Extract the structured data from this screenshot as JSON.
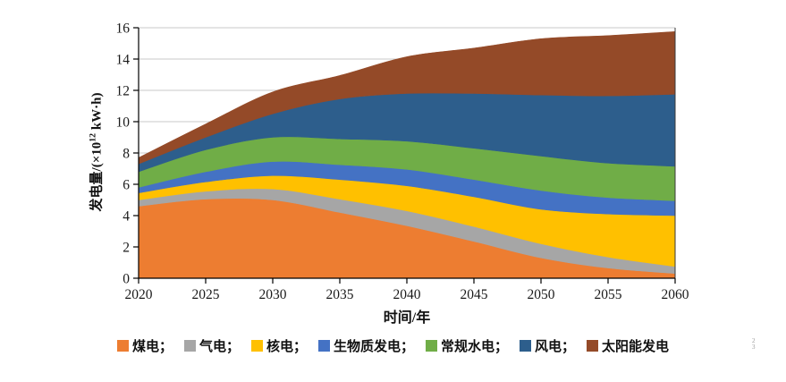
{
  "page": {
    "background": "#FFFFFF",
    "artifact_text": "2\n3"
  },
  "axes": {
    "x_title": "时间/年",
    "y_title_pre": "发电量/(×10",
    "y_title_sup": "12",
    "y_title_post": " kW·h)",
    "xticks": [
      2020,
      2025,
      2030,
      2035,
      2040,
      2045,
      2050,
      2055,
      2060
    ],
    "yticks": [
      0,
      2,
      4,
      6,
      8,
      10,
      12,
      14,
      16
    ],
    "grid_color": "#C9C9C9",
    "axis_color": "#000000"
  },
  "legend": {
    "items": [
      {
        "label": "煤电；",
        "color": "#ED7D31"
      },
      {
        "label": "气电；",
        "color": "#A6A6A6"
      },
      {
        "label": "核电；",
        "color": "#FFC000"
      },
      {
        "label": "生物质发电；",
        "color": "#4472C4"
      },
      {
        "label": "常规水电；",
        "color": "#70AD47"
      },
      {
        "label": "风电；",
        "color": "#2D5E8C"
      },
      {
        "label": "太阳能发电",
        "color": "#944A28"
      }
    ]
  },
  "chart_data": {
    "type": "area",
    "stacked": true,
    "title": "",
    "xlabel": "时间/年",
    "ylabel": "发电量/(×10¹² kW·h)",
    "x": [
      2020,
      2025,
      2030,
      2035,
      2040,
      2045,
      2050,
      2055,
      2060
    ],
    "xlim": [
      2020,
      2060
    ],
    "ylim": [
      0,
      16
    ],
    "grid": true,
    "legend_position": "bottom",
    "series": [
      {
        "name": "煤电",
        "color": "#ED7D31",
        "values": [
          4.6,
          5.05,
          5.0,
          4.2,
          3.35,
          2.35,
          1.3,
          0.65,
          0.3
        ]
      },
      {
        "name": "气电",
        "color": "#A6A6A6",
        "values": [
          0.4,
          0.5,
          0.7,
          0.85,
          0.95,
          0.95,
          0.9,
          0.7,
          0.45
        ]
      },
      {
        "name": "核电",
        "color": "#FFC000",
        "values": [
          0.45,
          0.6,
          0.85,
          1.25,
          1.6,
          1.9,
          2.2,
          2.75,
          3.25
        ]
      },
      {
        "name": "生物质发电",
        "color": "#4472C4",
        "values": [
          0.35,
          0.65,
          0.9,
          0.95,
          1.05,
          1.1,
          1.2,
          1.05,
          0.95
        ]
      },
      {
        "name": "常规水电",
        "color": "#70AD47",
        "values": [
          1.0,
          1.4,
          1.55,
          1.65,
          1.8,
          2.0,
          2.2,
          2.2,
          2.2
        ]
      },
      {
        "name": "风电",
        "color": "#2D5E8C",
        "values": [
          0.5,
          0.8,
          1.5,
          2.55,
          3.05,
          3.5,
          3.9,
          4.3,
          4.6
        ]
      },
      {
        "name": "太阳能发电",
        "color": "#944A28",
        "values": [
          0.4,
          0.85,
          1.4,
          1.5,
          2.35,
          2.9,
          3.6,
          3.85,
          4.0
        ]
      }
    ],
    "totals": [
      7.7,
      9.85,
      11.9,
      12.95,
      14.15,
      14.7,
      15.3,
      15.5,
      15.75
    ]
  }
}
